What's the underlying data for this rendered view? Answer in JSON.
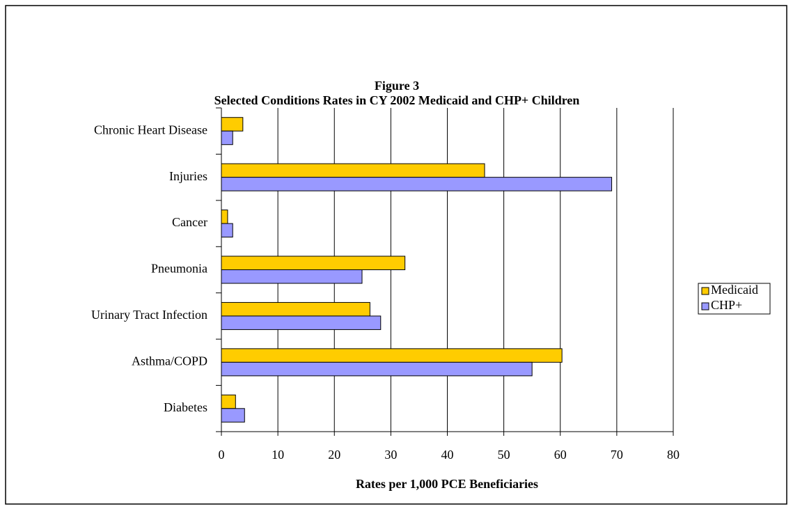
{
  "chart_data": {
    "type": "hbar",
    "title": "Figure 3",
    "subtitle": "Selected Conditions Rates in CY 2002 Medicaid and CHP+ Children",
    "x_label": "Rates per 1,000 PCE Beneficiaries",
    "categories": [
      "Chronic Heart Disease",
      "Injuries",
      "Cancer",
      "Pneumonia",
      "Urinary Tract Infection",
      "Asthma/COPD",
      "Diabetes"
    ],
    "series": [
      {
        "name": "Medicaid",
        "color": "#ffcc00",
        "values": [
          3.8,
          46.6,
          1.1,
          32.5,
          26.3,
          60.3,
          2.5
        ]
      },
      {
        "name": "CHP+",
        "color": "#9999ff",
        "values": [
          2.0,
          69.1,
          2.0,
          24.9,
          28.2,
          55.0,
          4.1
        ]
      }
    ],
    "xlim": [
      0,
      80
    ],
    "xticks": [
      0,
      10,
      20,
      30,
      40,
      50,
      60,
      70,
      80
    ],
    "grid": true,
    "legend": "right"
  }
}
